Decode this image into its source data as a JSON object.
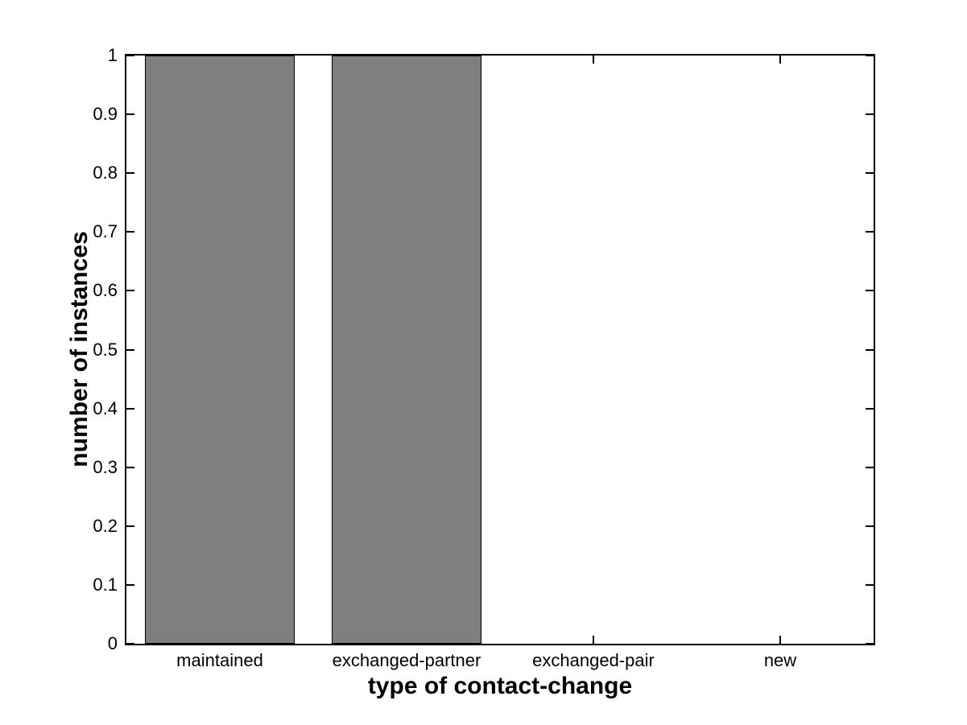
{
  "figure": {
    "background": "#ffffff",
    "axis_color": "#000000"
  },
  "chart_data": {
    "type": "bar",
    "title": "",
    "xlabel": "type of contact-change",
    "ylabel": "number of instances",
    "categories": [
      "maintained",
      "exchanged-partner",
      "exchanged-pair",
      "new"
    ],
    "values": [
      1,
      1,
      0,
      0
    ],
    "ylim": [
      0,
      1
    ],
    "yticks": [
      0,
      0.1,
      0.2,
      0.3,
      0.4,
      0.5,
      0.6,
      0.7,
      0.8,
      0.9,
      1
    ],
    "ytick_labels": [
      "0",
      "0.1",
      "0.2",
      "0.3",
      "0.4",
      "0.5",
      "0.6",
      "0.7",
      "0.8",
      "0.9",
      "1"
    ],
    "bar_width_fraction": 0.8,
    "bar_color": "#7f7f7f",
    "bar_edge_color": "#000000",
    "grid": false,
    "legend": null,
    "tick_direction": "in"
  }
}
